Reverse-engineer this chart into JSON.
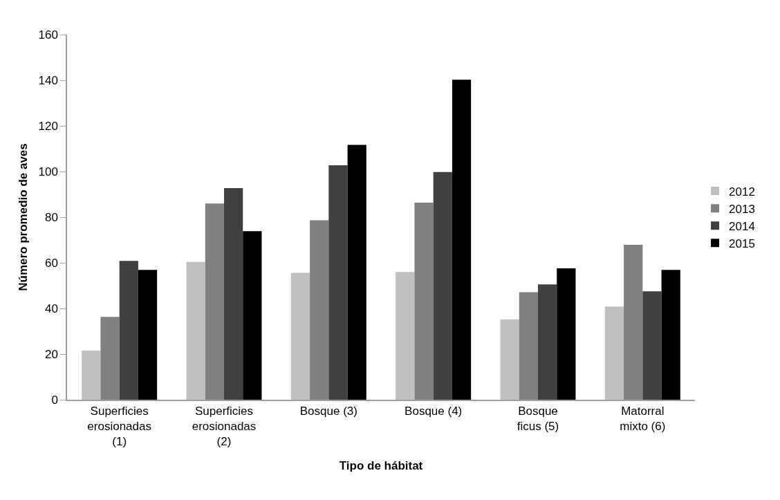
{
  "chart_data": {
    "type": "bar",
    "xlabel": "Tipo de hábitat",
    "ylabel": "Número promedio de aves",
    "categories": [
      "Superficies erosionadas (1)",
      "Superficies erosionadas (2)",
      "Bosque (3)",
      "Bosque (4)",
      "Bosque ficus (5)",
      "Matorral mixto (6)"
    ],
    "series": [
      {
        "name": "2012",
        "color": "#c0c0c0",
        "values": [
          21.5,
          60.4,
          55.6,
          56.0,
          35.2,
          40.8
        ]
      },
      {
        "name": "2013",
        "color": "#808080",
        "values": [
          36.3,
          86.0,
          78.6,
          86.4,
          47.1,
          67.9
        ]
      },
      {
        "name": "2014",
        "color": "#404040",
        "values": [
          60.8,
          92.7,
          102.7,
          99.8,
          50.5,
          47.5
        ]
      },
      {
        "name": "2015",
        "color": "#000000",
        "values": [
          56.9,
          73.9,
          111.7,
          140.2,
          57.6,
          56.9
        ]
      }
    ],
    "ylim": [
      0,
      160
    ],
    "yticks": [
      0,
      20,
      40,
      60,
      80,
      100,
      120,
      140,
      160
    ],
    "grid": false,
    "legend": "right"
  }
}
